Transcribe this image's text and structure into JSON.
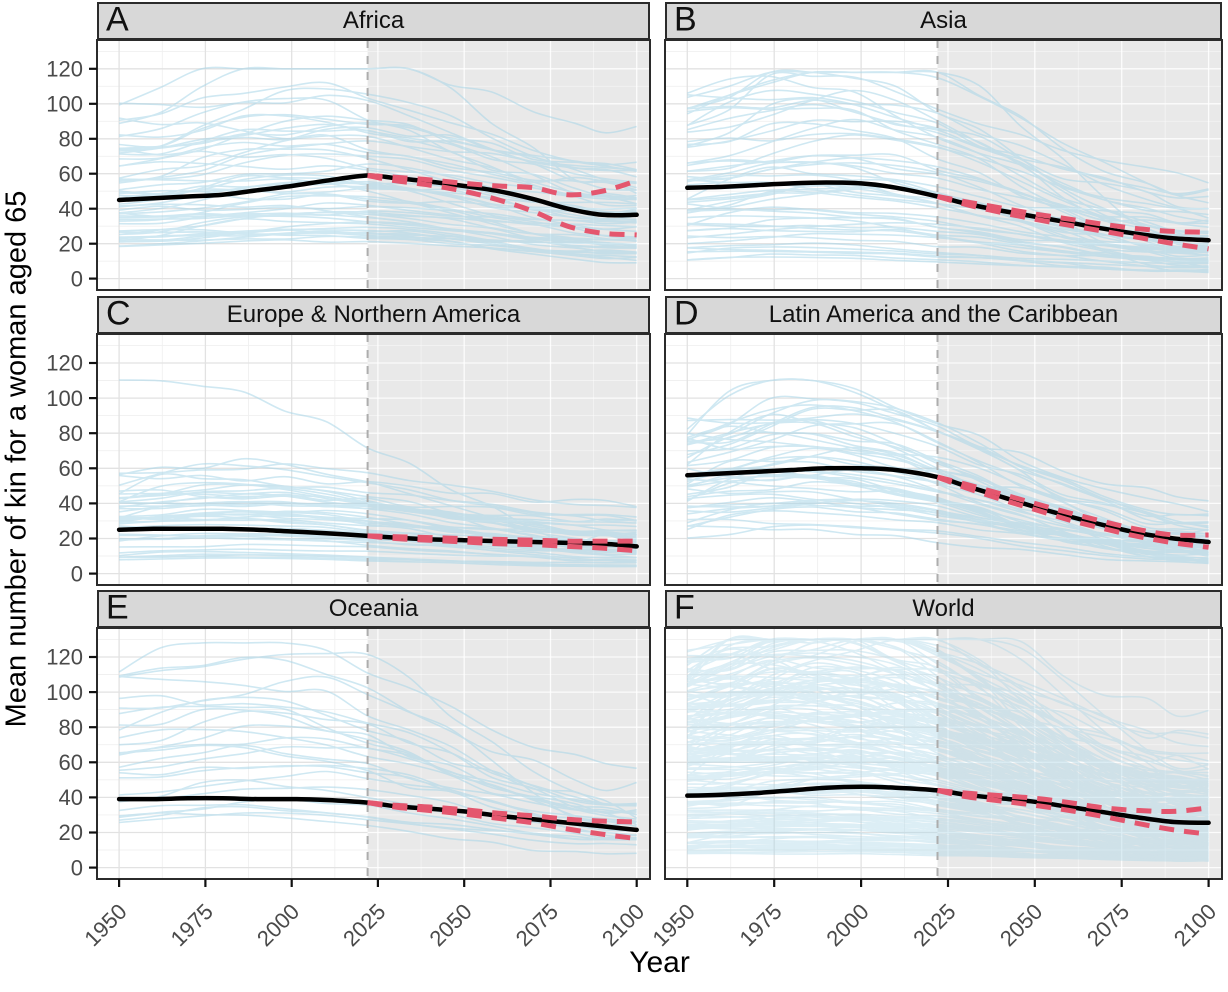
{
  "figure": {
    "y_axis_label": "Mean number of kin for a woman aged 65",
    "x_axis_label": "Year",
    "y_ticks": [
      0,
      20,
      40,
      60,
      80,
      100,
      120
    ],
    "x_ticks": [
      1950,
      1975,
      2000,
      2025,
      2050,
      2075,
      2100
    ],
    "x_range": [
      1950,
      2100
    ],
    "y_display_range": [
      -6.5,
      136.5
    ],
    "forecast_start_year": 2022,
    "grid": {
      "minor_x_years": [
        1962.5,
        1987.5,
        2012.5,
        2037.5,
        2062.5,
        2087.5
      ],
      "minor_y_values": [
        10,
        30,
        50,
        70,
        90,
        110,
        130
      ]
    },
    "colors": {
      "country_line": "#A9D6E8",
      "mean_line": "#000000",
      "ci_line": "#E4566E",
      "forecast_shade": "#E9E9E9",
      "forecast_divider": "#ADADAD",
      "strip_bg": "#D8D8D8",
      "panel_border": "#2B2B2B",
      "grid_major": "#E2E2E2",
      "grid_minor": "#F0F0F0",
      "grid_major_shaded": "rgba(255,255,255,0.85)",
      "grid_minor_shaded": "rgba(255,255,255,0.45)",
      "tick_label": "#4A4A4A",
      "axis_title": "#000000"
    }
  },
  "chart_data": [
    {
      "type": "line",
      "panel_label": "A",
      "title": "Africa",
      "x_years": [
        1950,
        1960,
        1970,
        1980,
        1990,
        2000,
        2010,
        2022,
        2030,
        2040,
        2050,
        2060,
        2070,
        2080,
        2090,
        2100
      ],
      "mean": [
        45,
        46,
        47,
        48,
        50.5,
        53,
        56,
        59,
        57.5,
        55.5,
        53,
        50,
        45.5,
        40,
        36.5,
        36.5
      ],
      "ci_years": [
        2022,
        2030,
        2040,
        2050,
        2060,
        2070,
        2080,
        2090,
        2100
      ],
      "ci_upper": [
        59,
        58,
        56.5,
        54.5,
        53,
        52,
        48,
        50,
        56
      ],
      "ci_lower": [
        59,
        56,
        53.5,
        50,
        45,
        38.5,
        30,
        26,
        25
      ],
      "ensemble": {
        "n": 55,
        "seed": 11,
        "start_min": 18,
        "start_max": 98,
        "start_bias": 1.15,
        "hump_max": 0.5,
        "peak_year_min": 1985,
        "peak_year_max": 2030,
        "end_keep_min": 0.35,
        "end_keep_max": 0.85,
        "max_val": 120,
        "alpha": 0.55,
        "outliers": []
      }
    },
    {
      "type": "line",
      "panel_label": "B",
      "title": "Asia",
      "x_years": [
        1950,
        1960,
        1970,
        1980,
        1990,
        2000,
        2010,
        2022,
        2030,
        2040,
        2050,
        2060,
        2070,
        2080,
        2090,
        2100
      ],
      "mean": [
        52,
        52.5,
        53.5,
        54.5,
        55,
        54.5,
        52,
        47,
        43,
        39,
        35.5,
        32,
        28.5,
        25.5,
        23,
        22
      ],
      "ci_years": [
        2022,
        2030,
        2040,
        2050,
        2060,
        2070,
        2080,
        2090,
        2100
      ],
      "ci_upper": [
        47,
        44,
        40.5,
        37,
        34,
        31,
        28.5,
        27,
        26.5
      ],
      "ci_lower": [
        47,
        42.5,
        38,
        34,
        30.5,
        27,
        23.5,
        20,
        17
      ],
      "ensemble": {
        "n": 52,
        "seed": 22,
        "start_min": 10,
        "start_max": 108,
        "start_bias": 1.2,
        "hump_max": 0.35,
        "peak_year_min": 1965,
        "peak_year_max": 2010,
        "end_keep_min": 0.12,
        "end_keep_max": 0.5,
        "max_val": 118,
        "alpha": 0.55,
        "outliers": []
      }
    },
    {
      "type": "line",
      "panel_label": "C",
      "title": "Europe & Northern America",
      "x_years": [
        1950,
        1960,
        1970,
        1980,
        1990,
        2000,
        2010,
        2022,
        2030,
        2040,
        2050,
        2060,
        2070,
        2080,
        2090,
        2100
      ],
      "mean": [
        25,
        25.5,
        25.5,
        25.5,
        25,
        24,
        23,
        21.5,
        20.5,
        19.5,
        19,
        18.5,
        18,
        17.5,
        17,
        15.5
      ],
      "ci_years": [
        2022,
        2030,
        2040,
        2050,
        2060,
        2070,
        2080,
        2090,
        2100
      ],
      "ci_upper": [
        21.5,
        21,
        20.5,
        20,
        19.5,
        19,
        18.5,
        18.5,
        18.5
      ],
      "ci_lower": [
        21.5,
        20,
        19,
        18,
        17,
        16.5,
        15.5,
        14.5,
        13
      ],
      "ensemble": {
        "n": 46,
        "seed": 33,
        "start_min": 8,
        "start_max": 58,
        "start_bias": 1.5,
        "hump_max": 0.22,
        "peak_year_min": 1960,
        "peak_year_max": 2005,
        "end_keep_min": 0.3,
        "end_keep_max": 0.75,
        "max_val": 120,
        "alpha": 0.55,
        "outliers": [
          {
            "start": 112,
            "end": 18,
            "peak_year": 1958
          }
        ]
      }
    },
    {
      "type": "line",
      "panel_label": "D",
      "title": "Latin America and the Caribbean",
      "x_years": [
        1950,
        1960,
        1970,
        1980,
        1990,
        2000,
        2010,
        2022,
        2030,
        2040,
        2050,
        2060,
        2070,
        2080,
        2090,
        2100
      ],
      "mean": [
        56,
        57,
        58,
        59,
        60,
        60,
        59,
        55,
        50,
        44,
        38,
        32.5,
        27.5,
        23,
        20,
        18
      ],
      "ci_years": [
        2022,
        2030,
        2040,
        2050,
        2060,
        2070,
        2080,
        2090,
        2100
      ],
      "ci_upper": [
        55,
        51,
        45.5,
        40,
        34.5,
        29.5,
        25,
        22,
        22
      ],
      "ci_lower": [
        55,
        49,
        42.5,
        36.5,
        30.5,
        25.5,
        21,
        17.5,
        15
      ],
      "ensemble": {
        "n": 48,
        "seed": 44,
        "start_min": 20,
        "start_max": 92,
        "start_bias": 1.1,
        "hump_max": 0.4,
        "peak_year_min": 1965,
        "peak_year_max": 2000,
        "end_keep_min": 0.12,
        "end_keep_max": 0.45,
        "max_val": 110,
        "alpha": 0.55,
        "outliers": []
      }
    },
    {
      "type": "line",
      "panel_label": "E",
      "title": "Oceania",
      "x_years": [
        1950,
        1960,
        1970,
        1980,
        1990,
        2000,
        2010,
        2022,
        2030,
        2040,
        2050,
        2060,
        2070,
        2080,
        2090,
        2100
      ],
      "mean": [
        39,
        39,
        39.5,
        39.5,
        39,
        39,
        38.5,
        37,
        35,
        33.5,
        32,
        29.5,
        27.5,
        25.5,
        23.5,
        21.5
      ],
      "ci_years": [
        2022,
        2030,
        2040,
        2050,
        2060,
        2070,
        2080,
        2090,
        2100
      ],
      "ci_upper": [
        37,
        35.5,
        34.5,
        33,
        31,
        29.5,
        27.5,
        26.5,
        26
      ],
      "ci_lower": [
        37,
        34.5,
        32.5,
        30.5,
        28,
        25.5,
        22,
        19,
        16.5
      ],
      "ensemble": {
        "n": 26,
        "seed": 55,
        "start_min": 24,
        "start_max": 115,
        "start_bias": 1.25,
        "hump_max": 0.3,
        "peak_year_min": 1970,
        "peak_year_max": 2015,
        "end_keep_min": 0.18,
        "end_keep_max": 0.5,
        "max_val": 128,
        "alpha": 0.55,
        "outliers": []
      }
    },
    {
      "type": "line",
      "panel_label": "F",
      "title": "World",
      "x_years": [
        1950,
        1960,
        1970,
        1980,
        1990,
        2000,
        2010,
        2022,
        2030,
        2040,
        2050,
        2060,
        2070,
        2080,
        2090,
        2100
      ],
      "mean": [
        41,
        41.5,
        42.5,
        44,
        45.5,
        46,
        45.5,
        44,
        41.5,
        39.5,
        37.5,
        34.5,
        31.5,
        28.5,
        26,
        25.5
      ],
      "ci_years": [
        2022,
        2030,
        2040,
        2050,
        2060,
        2070,
        2080,
        2090,
        2100
      ],
      "ci_upper": [
        44,
        42.5,
        41,
        39.5,
        37,
        34,
        32.5,
        32,
        34
      ],
      "ci_lower": [
        44,
        40.5,
        38,
        35.5,
        32.5,
        29,
        25,
        21.5,
        19
      ],
      "ensemble": {
        "n": 200,
        "seed": 66,
        "start_min": 8,
        "start_max": 122,
        "start_bias": 1.05,
        "hump_max": 0.35,
        "peak_year_min": 1965,
        "peak_year_max": 2015,
        "end_keep_min": 0.15,
        "end_keep_max": 0.55,
        "max_val": 130,
        "alpha": 0.4,
        "outliers": []
      }
    }
  ]
}
